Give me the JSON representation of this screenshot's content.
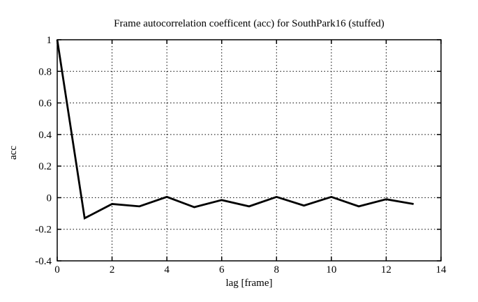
{
  "chart_data": {
    "type": "line",
    "title": "Frame autocorrelation coefficent (acc) for SouthPark16 (stuffed)",
    "xlabel": "lag [frame]",
    "ylabel": "acc",
    "series": [
      {
        "name": "acc",
        "x": [
          0,
          1,
          2,
          3,
          4,
          5,
          6,
          7,
          8,
          9,
          10,
          11,
          12,
          13
        ],
        "y": [
          1.0,
          -0.13,
          -0.04,
          -0.055,
          0.005,
          -0.06,
          -0.015,
          -0.055,
          0.005,
          -0.05,
          0.005,
          -0.055,
          -0.01,
          -0.04
        ]
      }
    ],
    "xlim": [
      0,
      14
    ],
    "ylim": [
      -0.4,
      1
    ],
    "xticks": [
      0,
      2,
      4,
      6,
      8,
      10,
      12,
      14
    ],
    "xtick_labels": [
      "0",
      "2",
      "4",
      "6",
      "8",
      "10",
      "12",
      "14"
    ],
    "yticks": [
      -0.4,
      -0.2,
      0,
      0.2,
      0.4,
      0.6,
      0.8,
      1
    ],
    "ytick_labels": [
      "-0.4",
      "-0.2",
      "0",
      "0.2",
      "0.4",
      "0.6",
      "0.8",
      "1"
    ],
    "grid": true,
    "grid_style": "dotted",
    "legend": "none",
    "line_color": "#000000",
    "border_color": "#000000",
    "background_color": "#ffffff"
  }
}
